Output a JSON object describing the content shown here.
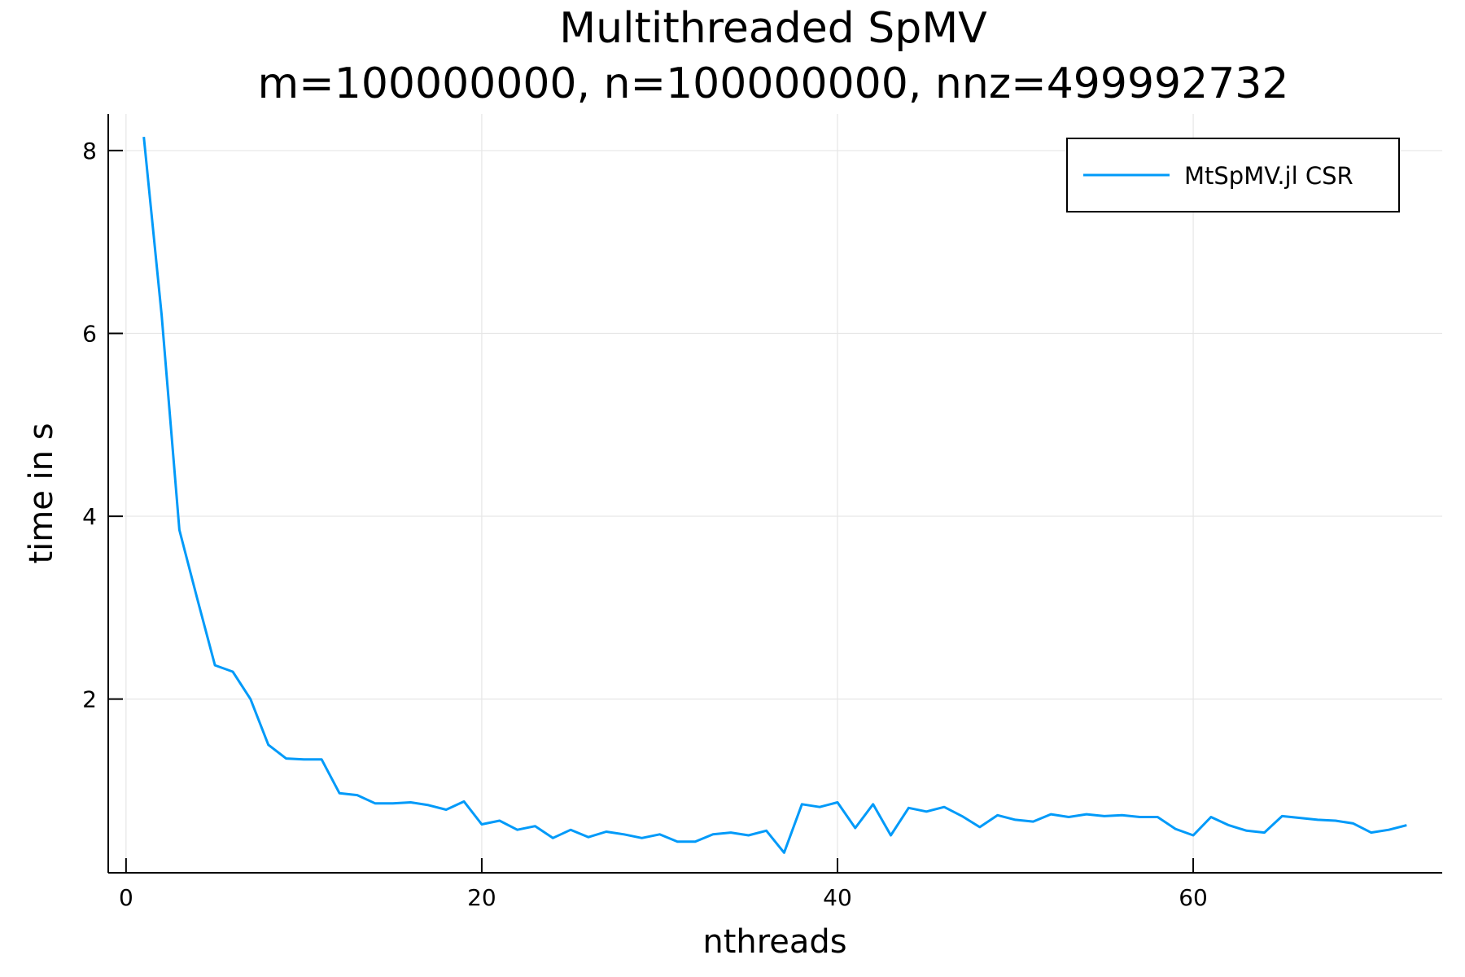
{
  "chart_data": {
    "type": "line",
    "title": "Multithreaded SpMV",
    "subtitle": "m=100000000, n=100000000, nnz=499992732",
    "xlabel": "nthreads",
    "ylabel": "time in s",
    "xlim": [
      -1,
      74
    ],
    "ylim": [
      0.1,
      8.4
    ],
    "xticks": [
      0,
      20,
      40,
      60
    ],
    "yticks": [
      2,
      4,
      6,
      8
    ],
    "grid": true,
    "legend_position": "top-right",
    "series": [
      {
        "name": "MtSpMV.jl CSR",
        "color": "#009af9",
        "x": [
          1,
          2,
          3,
          4,
          5,
          6,
          7,
          8,
          9,
          10,
          11,
          12,
          13,
          14,
          15,
          16,
          17,
          18,
          19,
          20,
          21,
          22,
          23,
          24,
          25,
          26,
          27,
          28,
          29,
          30,
          31,
          32,
          33,
          34,
          35,
          36,
          37,
          38,
          39,
          40,
          41,
          42,
          43,
          44,
          45,
          46,
          47,
          48,
          49,
          50,
          51,
          52,
          53,
          54,
          55,
          56,
          57,
          58,
          59,
          60,
          61,
          62,
          63,
          64,
          65,
          66,
          67,
          68,
          69,
          70,
          71,
          72
        ],
        "y": [
          8.15,
          6.2,
          3.85,
          3.1,
          2.37,
          2.3,
          2.0,
          1.5,
          1.35,
          1.34,
          1.34,
          0.97,
          0.95,
          0.86,
          0.86,
          0.87,
          0.84,
          0.79,
          0.88,
          0.63,
          0.67,
          0.57,
          0.61,
          0.48,
          0.57,
          0.49,
          0.55,
          0.52,
          0.48,
          0.52,
          0.44,
          0.44,
          0.52,
          0.54,
          0.51,
          0.56,
          0.32,
          0.85,
          0.82,
          0.87,
          0.59,
          0.85,
          0.51,
          0.81,
          0.77,
          0.82,
          0.72,
          0.6,
          0.73,
          0.68,
          0.66,
          0.74,
          0.71,
          0.74,
          0.72,
          0.73,
          0.71,
          0.71,
          0.58,
          0.51,
          0.71,
          0.62,
          0.56,
          0.54,
          0.72,
          0.7,
          0.68,
          0.67,
          0.64,
          0.54,
          0.57,
          0.62
        ]
      }
    ]
  }
}
